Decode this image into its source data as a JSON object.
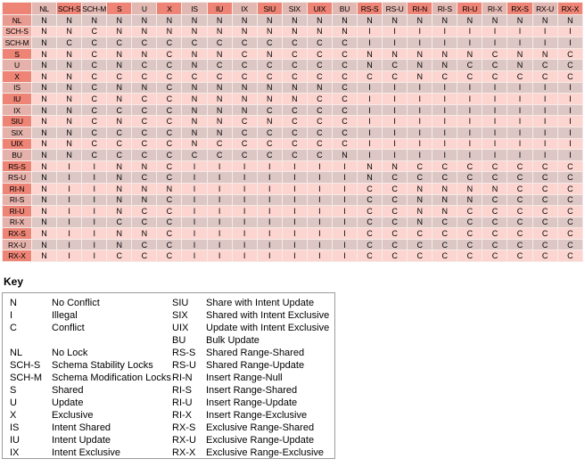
{
  "chart_data": {
    "type": "table",
    "columns": [
      "NL",
      "SCH-S",
      "SCH-M",
      "S",
      "U",
      "X",
      "IS",
      "IU",
      "IX",
      "SIU",
      "SIX",
      "UIX",
      "BU",
      "RS-S",
      "RS-U",
      "RI-N",
      "RI-S",
      "RI-U",
      "RI-X",
      "RX-S",
      "RX-U",
      "RX-X"
    ],
    "rows": [
      {
        "label": "NL",
        "cells": "NNNNNNNNNNNNNNNNNNNNNN"
      },
      {
        "label": "SCH-S",
        "cells": "NNCNNNNNNNNNNIIIIIIIII"
      },
      {
        "label": "SCH-M",
        "cells": "NCCCCCCCCCCCCIIIIIIIII"
      },
      {
        "label": "S",
        "cells": "NNCNNCNNCNCCCNNNNNCNNC"
      },
      {
        "label": "U",
        "cells": "NNCNCCNCCCCCCNCNNCCNCC"
      },
      {
        "label": "X",
        "cells": "NNCCCCCCCCCCCCCNCCCCCC"
      },
      {
        "label": "IS",
        "cells": "NNCNNCNNNNNNCIIIIIIIII"
      },
      {
        "label": "IU",
        "cells": "NNCNCCNNNNNCCIIIIIIIII"
      },
      {
        "label": "IX",
        "cells": "NNCCCCNNNCCCCIIIIIIIII"
      },
      {
        "label": "SIU",
        "cells": "NNCNCCNNCNCCCIIIIIIIII"
      },
      {
        "label": "SIX",
        "cells": "NNCCCCNNCCCCCIIIIIIIII"
      },
      {
        "label": "UIX",
        "cells": "NNCCCCNCCCCCCIIIIIIIII"
      },
      {
        "label": "BU",
        "cells": "NNCCCCCCCCCCNIIIIIIIII"
      },
      {
        "label": "RS-S",
        "cells": "NIINNCIIIIIIINNCCCCCCC"
      },
      {
        "label": "RS-U",
        "cells": "NIINCCIIIIIIINCCCCCCCC"
      },
      {
        "label": "RI-N",
        "cells": "NIINNNIIIIIIICCNNNNCCC"
      },
      {
        "label": "RI-S",
        "cells": "NIINNCIIIIIIICCNNNCCCC"
      },
      {
        "label": "RI-U",
        "cells": "NIINCCIIIIIIICCNNCCCCC"
      },
      {
        "label": "RI-X",
        "cells": "NIICCCIIIIIIICCNCCCCCC"
      },
      {
        "label": "RX-S",
        "cells": "NIINNCIIIIIIICCCCCCCCC"
      },
      {
        "label": "RX-U",
        "cells": "NIINCCIIIIIIICCCCCCCCC"
      },
      {
        "label": "RX-X",
        "cells": "NIICCCIIIIIIICCCCCCCCC"
      }
    ]
  },
  "key": {
    "title": "Key",
    "result_codes": [
      {
        "abbr": "N",
        "desc": "No Conflict"
      },
      {
        "abbr": "I",
        "desc": "Illegal"
      },
      {
        "abbr": "C",
        "desc": "Conflict"
      }
    ],
    "lock_modes_left": [
      {
        "abbr": "NL",
        "desc": "No Lock"
      },
      {
        "abbr": "SCH-S",
        "desc": "Schema Stability Locks"
      },
      {
        "abbr": "SCH-M",
        "desc": "Schema Modification Locks"
      },
      {
        "abbr": "S",
        "desc": "Shared"
      },
      {
        "abbr": "U",
        "desc": "Update"
      },
      {
        "abbr": "X",
        "desc": "Exclusive"
      },
      {
        "abbr": "IS",
        "desc": "Intent Shared"
      },
      {
        "abbr": "IU",
        "desc": "Intent Update"
      },
      {
        "abbr": "IX",
        "desc": "Intent Exclusive"
      }
    ],
    "lock_modes_right": [
      {
        "abbr": "SIU",
        "desc": "Share with Intent Update"
      },
      {
        "abbr": "SIX",
        "desc": "Shared with Intent Exclusive"
      },
      {
        "abbr": "UIX",
        "desc": "Update with Intent Exclusive"
      },
      {
        "abbr": "BU",
        "desc": "Bulk Update"
      },
      {
        "abbr": "RS-S",
        "desc": "Shared Range-Shared"
      },
      {
        "abbr": "RS-U",
        "desc": "Shared Range-Update"
      },
      {
        "abbr": "RI-N",
        "desc": "Insert Range-Null"
      },
      {
        "abbr": "RI-S",
        "desc": "Insert Range-Shared"
      },
      {
        "abbr": "RI-U",
        "desc": "Insert Range-Update"
      },
      {
        "abbr": "RI-X",
        "desc": "Insert Range-Exclusive"
      },
      {
        "abbr": "RX-S",
        "desc": "Exclusive Range-Shared"
      },
      {
        "abbr": "RX-U",
        "desc": "Exclusive Range-Update"
      },
      {
        "abbr": "RX-X",
        "desc": "Exclusive Range-Exclusive"
      }
    ]
  },
  "colors": {
    "header_dark": "#ed8475",
    "header_light": "#e2b8b2",
    "row_header_light": "#e5b2ab",
    "row_header_nl": "#e89c91",
    "row_header_schs": "#f5b1a8",
    "cell_gray": "#dcc7c5",
    "cell_pink": "#fcd5d0",
    "grid": "#f6eae7",
    "key_border": "#9b9b9b",
    "text": "#000000"
  }
}
